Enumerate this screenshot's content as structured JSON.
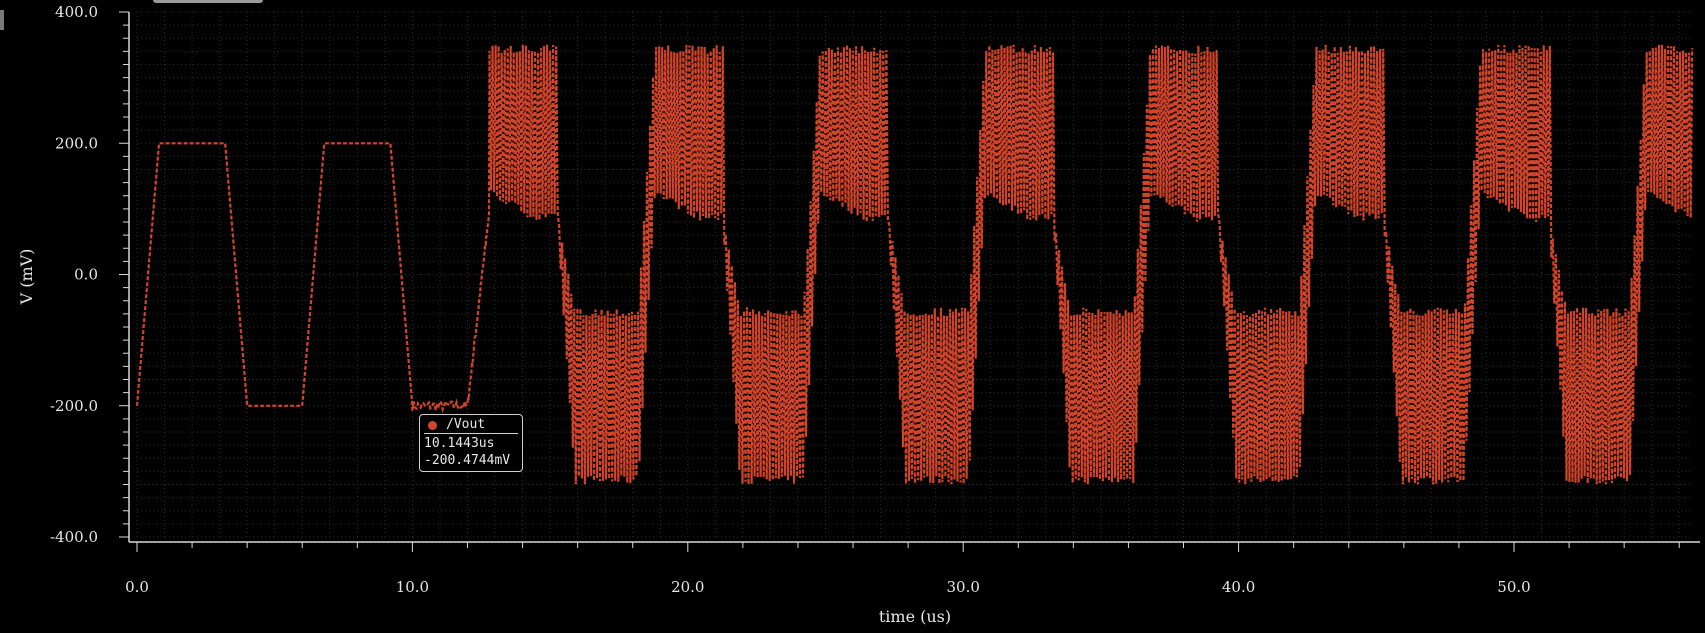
{
  "chart_data": {
    "type": "line",
    "title": "",
    "xlabel": "time (us)",
    "ylabel": "V (mV)",
    "xlim": [
      0,
      56.5
    ],
    "ylim": [
      -400,
      400
    ],
    "x_ticks": [
      "0.0",
      "10.0",
      "20.0",
      "30.0",
      "40.0",
      "50.0"
    ],
    "x_tick_values": [
      0,
      10,
      20,
      30,
      40,
      50
    ],
    "y_ticks": [
      "400.0",
      "200.0",
      "0.0",
      "-200.0",
      "-400.0"
    ],
    "y_tick_values": [
      400,
      200,
      0,
      -200,
      -400
    ],
    "grid": true,
    "series": [
      {
        "name": "/Vout",
        "color": "#d2452a",
        "style": "dashed",
        "description_points_x": [
          0.0,
          0.8,
          3.2,
          4.0,
          6.0,
          6.8,
          9.2,
          10.0,
          12.0,
          12.8,
          15.3,
          16.0,
          18.3,
          19.1,
          21.3,
          22.0
        ],
        "description_points_y": [
          -200,
          200,
          200,
          -200,
          -200,
          200,
          200,
          -200,
          -200,
          100,
          100,
          -100,
          -100,
          100,
          100,
          -100
        ],
        "envelope_high_max": 350,
        "envelope_high_min": 80,
        "envelope_low_max": -50,
        "envelope_low_min": -320,
        "period_us": 6.0
      }
    ]
  },
  "marker": {
    "name": "/Vout",
    "x_value": "10.1443us",
    "y_value": "-200.4744mV"
  }
}
